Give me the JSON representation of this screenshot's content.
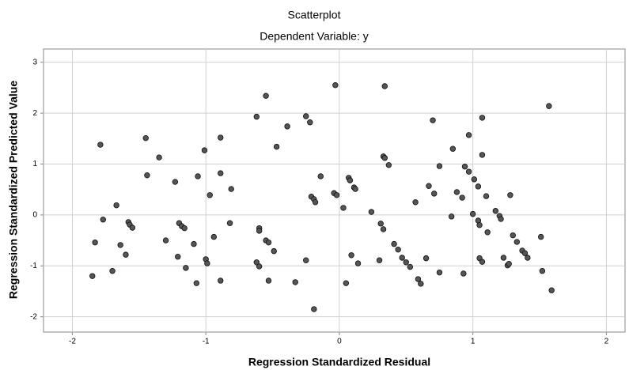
{
  "chart_data": {
    "type": "scatter",
    "title": "Scatterplot",
    "subtitle": "Dependent Variable: y",
    "x_label": "Regression Standardized Residual",
    "y_label": "Regression Standardized Predicted Value",
    "xlim": [
      -2.216,
      2.14
    ],
    "ylim": [
      -2.3,
      3.26
    ],
    "xticks": [
      -2,
      -1,
      0,
      1,
      2
    ],
    "yticks": [
      -2,
      -1,
      0,
      1,
      2,
      3
    ],
    "grid": true,
    "series": [
      {
        "color": "#555555",
        "x": [
          -1.85,
          -1.83,
          -1.79,
          -1.77,
          -1.7,
          -1.67,
          -1.64,
          -1.6,
          -1.58,
          -1.57,
          -1.55,
          -1.45,
          -1.44,
          -1.35,
          -1.3,
          -1.23,
          -1.21,
          -1.2,
          -1.18,
          -1.16,
          -1.15,
          -1.09,
          -1.07,
          -1.06,
          -1.01,
          -1.0,
          -0.99,
          -0.97,
          -0.94,
          -0.89,
          -0.89,
          -0.89,
          -0.82,
          -0.81,
          -0.62,
          -0.62,
          -0.6,
          -0.6,
          -0.6,
          -0.55,
          -0.55,
          -0.53,
          -0.53,
          -0.49,
          -0.47,
          -0.39,
          -0.33,
          -0.25,
          -0.25,
          -0.22,
          -0.21,
          -0.19,
          -0.18,
          -0.19,
          -0.14,
          -0.04,
          -0.03,
          -0.02,
          0.03,
          0.05,
          0.07,
          0.08,
          0.09,
          0.11,
          0.12,
          0.14,
          0.24,
          0.3,
          0.31,
          0.33,
          0.33,
          0.34,
          0.34,
          0.37,
          0.41,
          0.44,
          0.47,
          0.5,
          0.53,
          0.57,
          0.59,
          0.61,
          0.65,
          0.67,
          0.7,
          0.71,
          0.75,
          0.75,
          0.84,
          0.85,
          0.88,
          0.92,
          0.93,
          0.94,
          0.97,
          0.97,
          1.0,
          1.01,
          1.04,
          1.04,
          1.05,
          1.05,
          1.07,
          1.07,
          1.07,
          1.1,
          1.11,
          1.17,
          1.2,
          1.21,
          1.23,
          1.26,
          1.27,
          1.28,
          1.3,
          1.33,
          1.37,
          1.39,
          1.41,
          1.52,
          1.51,
          1.57,
          1.59
        ],
        "values": [
          -1.2,
          -0.54,
          1.38,
          -0.09,
          -1.1,
          0.19,
          -0.59,
          -0.78,
          -0.14,
          -0.19,
          -0.25,
          1.51,
          0.78,
          1.13,
          -0.5,
          0.65,
          -0.82,
          -0.16,
          -0.22,
          -0.26,
          -1.04,
          -0.57,
          -1.34,
          0.76,
          1.27,
          -0.87,
          -0.95,
          0.39,
          -0.43,
          -1.29,
          1.52,
          0.82,
          -0.16,
          0.51,
          1.93,
          -0.93,
          -0.26,
          -0.31,
          -1.01,
          2.34,
          -0.5,
          -0.54,
          -1.29,
          -0.71,
          1.34,
          1.74,
          -1.32,
          -0.89,
          1.94,
          1.82,
          0.36,
          0.31,
          0.25,
          -1.85,
          0.76,
          0.43,
          2.55,
          0.39,
          0.14,
          -1.34,
          0.73,
          0.68,
          -0.79,
          0.54,
          0.51,
          -0.95,
          0.06,
          -0.89,
          -0.17,
          -0.28,
          1.15,
          1.12,
          2.53,
          0.98,
          -0.57,
          -0.68,
          -0.84,
          -0.93,
          -1.02,
          0.25,
          -1.26,
          -1.35,
          -0.85,
          0.57,
          1.86,
          0.42,
          -1.13,
          0.96,
          -0.03,
          1.3,
          0.45,
          0.34,
          -1.15,
          0.95,
          0.85,
          1.57,
          0.02,
          0.7,
          -0.11,
          0.56,
          -0.2,
          -0.85,
          -0.92,
          1.91,
          1.18,
          0.37,
          -0.34,
          0.08,
          -0.02,
          -0.08,
          -0.84,
          -0.99,
          -0.96,
          0.39,
          -0.4,
          -0.53,
          -0.7,
          -0.75,
          -0.84,
          -1.1,
          -0.43,
          2.14,
          -1.48
        ]
      }
    ]
  }
}
